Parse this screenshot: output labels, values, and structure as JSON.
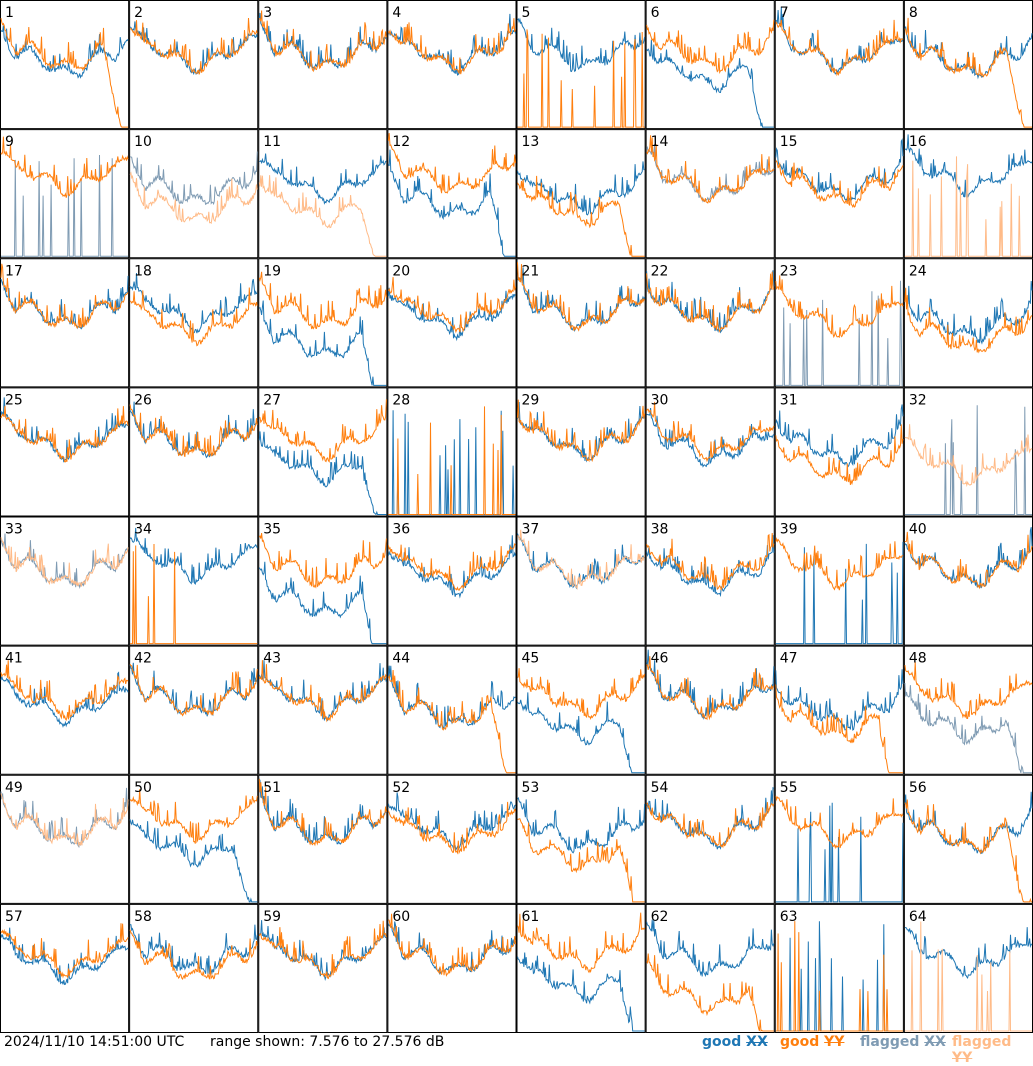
{
  "footer": {
    "timestamp": "2024/11/10 14:51:00 UTC",
    "range_label": "range shown: 7.576 to 27.576 dB"
  },
  "legend": [
    {
      "status": "good",
      "pol": "XX",
      "color": "#1f77b4"
    },
    {
      "status": "good",
      "pol": "YY",
      "color": "#ff7f0e"
    },
    {
      "status": "flagged",
      "pol": "XX",
      "color": "#7f9bb3"
    },
    {
      "status": "flagged",
      "pol": "YY",
      "color": "#ffbb88"
    }
  ],
  "chart_data": {
    "type": "line",
    "title": "",
    "xlabel": "",
    "ylabel": "",
    "ylim": [
      7.576,
      27.576
    ],
    "unit": "dB",
    "grid_layout": {
      "rows": 8,
      "cols": 8
    },
    "panels": [
      {
        "id": "1",
        "xx": {
          "level": 0.5,
          "status": "good"
        },
        "yy": {
          "level": 0.55,
          "status": "good",
          "shape": "rolloff"
        }
      },
      {
        "id": "2",
        "xx": {
          "level": 0.55,
          "status": "good"
        },
        "yy": {
          "level": 0.55,
          "status": "good"
        }
      },
      {
        "id": "3",
        "xx": {
          "level": 0.55,
          "status": "good"
        },
        "yy": {
          "level": 0.55,
          "status": "good"
        }
      },
      {
        "id": "4",
        "xx": {
          "level": 0.55,
          "status": "good"
        },
        "yy": {
          "level": 0.55,
          "status": "good"
        }
      },
      {
        "id": "5",
        "xx": {
          "level": 0.55,
          "status": "good"
        },
        "yy": {
          "level": 0.0,
          "status": "good",
          "shape": "dead"
        }
      },
      {
        "id": "6",
        "xx": {
          "level": 0.4,
          "status": "good",
          "shape": "rolloff"
        },
        "yy": {
          "level": 0.55,
          "status": "good"
        }
      },
      {
        "id": "7",
        "xx": {
          "level": 0.55,
          "status": "good"
        },
        "yy": {
          "level": 0.55,
          "status": "good"
        }
      },
      {
        "id": "8",
        "xx": {
          "level": 0.5,
          "status": "good"
        },
        "yy": {
          "level": 0.5,
          "status": "good",
          "shape": "rolloff"
        }
      },
      {
        "id": "9",
        "xx": {
          "level": 0.0,
          "status": "flagged",
          "shape": "dead"
        },
        "yy": {
          "level": 0.6,
          "status": "good"
        }
      },
      {
        "id": "10",
        "xx": {
          "level": 0.5,
          "status": "flagged"
        },
        "yy": {
          "level": 0.35,
          "status": "flagged"
        }
      },
      {
        "id": "11",
        "xx": {
          "level": 0.55,
          "status": "good"
        },
        "yy": {
          "level": 0.35,
          "status": "flagged",
          "shape": "rolloff"
        }
      },
      {
        "id": "12",
        "xx": {
          "level": 0.4,
          "status": "good",
          "shape": "rolloff"
        },
        "yy": {
          "level": 0.6,
          "status": "good"
        }
      },
      {
        "id": "13",
        "xx": {
          "level": 0.45,
          "status": "good"
        },
        "yy": {
          "level": 0.35,
          "status": "good",
          "shape": "rolloff"
        }
      },
      {
        "id": "14",
        "xx": {
          "level": 0.55,
          "status": "flagged"
        },
        "yy": {
          "level": 0.55,
          "status": "good"
        }
      },
      {
        "id": "15",
        "xx": {
          "level": 0.55,
          "status": "good"
        },
        "yy": {
          "level": 0.5,
          "status": "good"
        }
      },
      {
        "id": "16",
        "xx": {
          "level": 0.6,
          "status": "good"
        },
        "yy": {
          "level": 0.0,
          "status": "flagged",
          "shape": "dead"
        }
      },
      {
        "id": "17",
        "xx": {
          "level": 0.55,
          "status": "good"
        },
        "yy": {
          "level": 0.55,
          "status": "good"
        }
      },
      {
        "id": "18",
        "xx": {
          "level": 0.55,
          "status": "good"
        },
        "yy": {
          "level": 0.45,
          "status": "good"
        }
      },
      {
        "id": "19",
        "xx": {
          "level": 0.3,
          "status": "good",
          "shape": "rolloff"
        },
        "yy": {
          "level": 0.55,
          "status": "good"
        }
      },
      {
        "id": "20",
        "xx": {
          "level": 0.5,
          "status": "good"
        },
        "yy": {
          "level": 0.55,
          "status": "good"
        }
      },
      {
        "id": "21",
        "xx": {
          "level": 0.55,
          "status": "good"
        },
        "yy": {
          "level": 0.55,
          "status": "good"
        }
      },
      {
        "id": "22",
        "xx": {
          "level": 0.55,
          "status": "good"
        },
        "yy": {
          "level": 0.55,
          "status": "good"
        }
      },
      {
        "id": "23",
        "xx": {
          "level": 0.0,
          "status": "flagged",
          "shape": "dead"
        },
        "yy": {
          "level": 0.5,
          "status": "good"
        }
      },
      {
        "id": "24",
        "xx": {
          "level": 0.45,
          "status": "good"
        },
        "yy": {
          "level": 0.35,
          "status": "good"
        }
      },
      {
        "id": "25",
        "xx": {
          "level": 0.55,
          "status": "good"
        },
        "yy": {
          "level": 0.55,
          "status": "good"
        }
      },
      {
        "id": "26",
        "xx": {
          "level": 0.55,
          "status": "good"
        },
        "yy": {
          "level": 0.55,
          "status": "good"
        }
      },
      {
        "id": "27",
        "xx": {
          "level": 0.35,
          "status": "good",
          "shape": "rolloff"
        },
        "yy": {
          "level": 0.55,
          "status": "good"
        }
      },
      {
        "id": "28",
        "xx": {
          "level": 0.0,
          "status": "good",
          "shape": "dead"
        },
        "yy": {
          "level": 0.0,
          "status": "good",
          "shape": "dead"
        }
      },
      {
        "id": "29",
        "xx": {
          "level": 0.55,
          "status": "good"
        },
        "yy": {
          "level": 0.55,
          "status": "good"
        }
      },
      {
        "id": "30",
        "xx": {
          "level": 0.5,
          "status": "good"
        },
        "yy": {
          "level": 0.55,
          "status": "good"
        }
      },
      {
        "id": "31",
        "xx": {
          "level": 0.5,
          "status": "good"
        },
        "yy": {
          "level": 0.35,
          "status": "good"
        }
      },
      {
        "id": "32",
        "xx": {
          "level": 0.0,
          "status": "flagged",
          "shape": "dead"
        },
        "yy": {
          "level": 0.35,
          "status": "flagged"
        }
      },
      {
        "id": "33",
        "xx": {
          "level": 0.55,
          "status": "flagged"
        },
        "yy": {
          "level": 0.55,
          "status": "flagged"
        }
      },
      {
        "id": "34",
        "xx": {
          "level": 0.6,
          "status": "good"
        },
        "yy": {
          "level": 0.0,
          "status": "good",
          "shape": "dead"
        }
      },
      {
        "id": "35",
        "xx": {
          "level": 0.3,
          "status": "good",
          "shape": "rolloff"
        },
        "yy": {
          "level": 0.55,
          "status": "good"
        }
      },
      {
        "id": "36",
        "xx": {
          "level": 0.5,
          "status": "good"
        },
        "yy": {
          "level": 0.55,
          "status": "good"
        }
      },
      {
        "id": "37",
        "xx": {
          "level": 0.55,
          "status": "good"
        },
        "yy": {
          "level": 0.55,
          "status": "flagged"
        }
      },
      {
        "id": "38",
        "xx": {
          "level": 0.5,
          "status": "good"
        },
        "yy": {
          "level": 0.55,
          "status": "good"
        }
      },
      {
        "id": "39",
        "xx": {
          "level": 0.0,
          "status": "good",
          "shape": "dead"
        },
        "yy": {
          "level": 0.55,
          "status": "good"
        }
      },
      {
        "id": "40",
        "xx": {
          "level": 0.55,
          "status": "good"
        },
        "yy": {
          "level": 0.55,
          "status": "good"
        }
      },
      {
        "id": "41",
        "xx": {
          "level": 0.5,
          "status": "good"
        },
        "yy": {
          "level": 0.55,
          "status": "good"
        }
      },
      {
        "id": "42",
        "xx": {
          "level": 0.55,
          "status": "good"
        },
        "yy": {
          "level": 0.55,
          "status": "good"
        }
      },
      {
        "id": "43",
        "xx": {
          "level": 0.55,
          "status": "good"
        },
        "yy": {
          "level": 0.55,
          "status": "good"
        }
      },
      {
        "id": "44",
        "xx": {
          "level": 0.45,
          "status": "good"
        },
        "yy": {
          "level": 0.45,
          "status": "good",
          "shape": "rolloff"
        }
      },
      {
        "id": "45",
        "xx": {
          "level": 0.35,
          "status": "good",
          "shape": "rolloff"
        },
        "yy": {
          "level": 0.55,
          "status": "good"
        }
      },
      {
        "id": "46",
        "xx": {
          "level": 0.55,
          "status": "good"
        },
        "yy": {
          "level": 0.55,
          "status": "good"
        }
      },
      {
        "id": "47",
        "xx": {
          "level": 0.45,
          "status": "good"
        },
        "yy": {
          "level": 0.35,
          "status": "good",
          "shape": "rolloff"
        }
      },
      {
        "id": "48",
        "xx": {
          "level": 0.35,
          "status": "flagged",
          "shape": "rolloff"
        },
        "yy": {
          "level": 0.55,
          "status": "good"
        }
      },
      {
        "id": "49",
        "xx": {
          "level": 0.55,
          "status": "flagged"
        },
        "yy": {
          "level": 0.55,
          "status": "flagged"
        }
      },
      {
        "id": "50",
        "xx": {
          "level": 0.4,
          "status": "good",
          "shape": "rolloff"
        },
        "yy": {
          "level": 0.6,
          "status": "good"
        }
      },
      {
        "id": "51",
        "xx": {
          "level": 0.55,
          "status": "good"
        },
        "yy": {
          "level": 0.55,
          "status": "good"
        }
      },
      {
        "id": "52",
        "xx": {
          "level": 0.55,
          "status": "good"
        },
        "yy": {
          "level": 0.5,
          "status": "good"
        }
      },
      {
        "id": "53",
        "xx": {
          "level": 0.5,
          "status": "good"
        },
        "yy": {
          "level": 0.35,
          "status": "good",
          "shape": "rolloff"
        }
      },
      {
        "id": "54",
        "xx": {
          "level": 0.55,
          "status": "good"
        },
        "yy": {
          "level": 0.55,
          "status": "good"
        }
      },
      {
        "id": "55",
        "xx": {
          "level": 0.0,
          "status": "good",
          "shape": "dead"
        },
        "yy": {
          "level": 0.55,
          "status": "good"
        }
      },
      {
        "id": "56",
        "xx": {
          "level": 0.5,
          "status": "good"
        },
        "yy": {
          "level": 0.5,
          "status": "good",
          "shape": "rolloff"
        }
      },
      {
        "id": "57",
        "xx": {
          "level": 0.5,
          "status": "good"
        },
        "yy": {
          "level": 0.55,
          "status": "good"
        }
      },
      {
        "id": "58",
        "xx": {
          "level": 0.55,
          "status": "good"
        },
        "yy": {
          "level": 0.5,
          "status": "good"
        }
      },
      {
        "id": "59",
        "xx": {
          "level": 0.55,
          "status": "good"
        },
        "yy": {
          "level": 0.55,
          "status": "good"
        }
      },
      {
        "id": "60",
        "xx": {
          "level": 0.55,
          "status": "good"
        },
        "yy": {
          "level": 0.55,
          "status": "good"
        }
      },
      {
        "id": "61",
        "xx": {
          "level": 0.35,
          "status": "good",
          "shape": "rolloff"
        },
        "yy": {
          "level": 0.6,
          "status": "good"
        }
      },
      {
        "id": "62",
        "xx": {
          "level": 0.55,
          "status": "good"
        },
        "yy": {
          "level": 0.25,
          "status": "good",
          "shape": "rolloff"
        }
      },
      {
        "id": "63",
        "xx": {
          "level": 0.0,
          "status": "good",
          "shape": "dead"
        },
        "yy": {
          "level": 0.0,
          "status": "good",
          "shape": "dead"
        }
      },
      {
        "id": "64",
        "xx": {
          "level": 0.55,
          "status": "good"
        },
        "yy": {
          "level": 0.0,
          "status": "flagged",
          "shape": "dead"
        }
      }
    ]
  }
}
